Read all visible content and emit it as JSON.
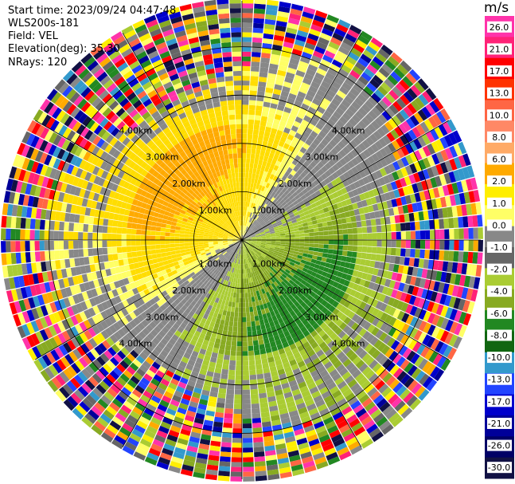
{
  "header": {
    "start_time": "Start time: 2023/09/24 04:47:48",
    "instrument": "WLS200s-181",
    "field": "Field: VEL",
    "elevation": "Elevation(deg): 35.30",
    "nrays": "NRays: 120"
  },
  "chart_data": {
    "type": "heatmap",
    "projection": "polar-ppi",
    "field": "VEL",
    "units": "m/s",
    "n_rays": 120,
    "range_rings_km": [
      1.0,
      2.0,
      3.0,
      4.0
    ],
    "range_ring_labels": [
      "1.00km",
      "2.00km",
      "3.00km",
      "4.00km"
    ],
    "max_range_km": 4.95,
    "radial_spokes_deg": [
      0,
      30,
      60,
      90,
      120,
      150,
      180,
      210,
      240,
      270,
      300,
      330
    ],
    "colorbar": {
      "title": "m/s",
      "ticks": [
        "26.0",
        "21.0",
        "17.0",
        "13.0",
        "10.0",
        "8.0",
        "6.0",
        "2.0",
        "1.0",
        "0.0",
        "-1.0",
        "-2.0",
        "-4.0",
        "-6.0",
        "-8.0",
        "-10.0",
        "-13.0",
        "-17.0",
        "-21.0",
        "-26.0",
        "-30.0"
      ],
      "colors": [
        "#ff33aa",
        "#ff2277",
        "#ff0000",
        "#ff3300",
        "#ff6644",
        "#ff8866",
        "#ffaa66",
        "#ffaa00",
        "#ffee00",
        "#ffff66",
        "#888888",
        "#666666",
        "#aacc33",
        "#88aa22",
        "#228822",
        "#116611",
        "#3399cc",
        "#2244ff",
        "#0000cc",
        "#000099",
        "#000066",
        "#111144"
      ]
    },
    "velocity_pattern": {
      "toward_max_ms": -6.0,
      "away_max_ms": 6.0,
      "noise_range_km": 3.6,
      "description_direction_deg": 135
    }
  }
}
